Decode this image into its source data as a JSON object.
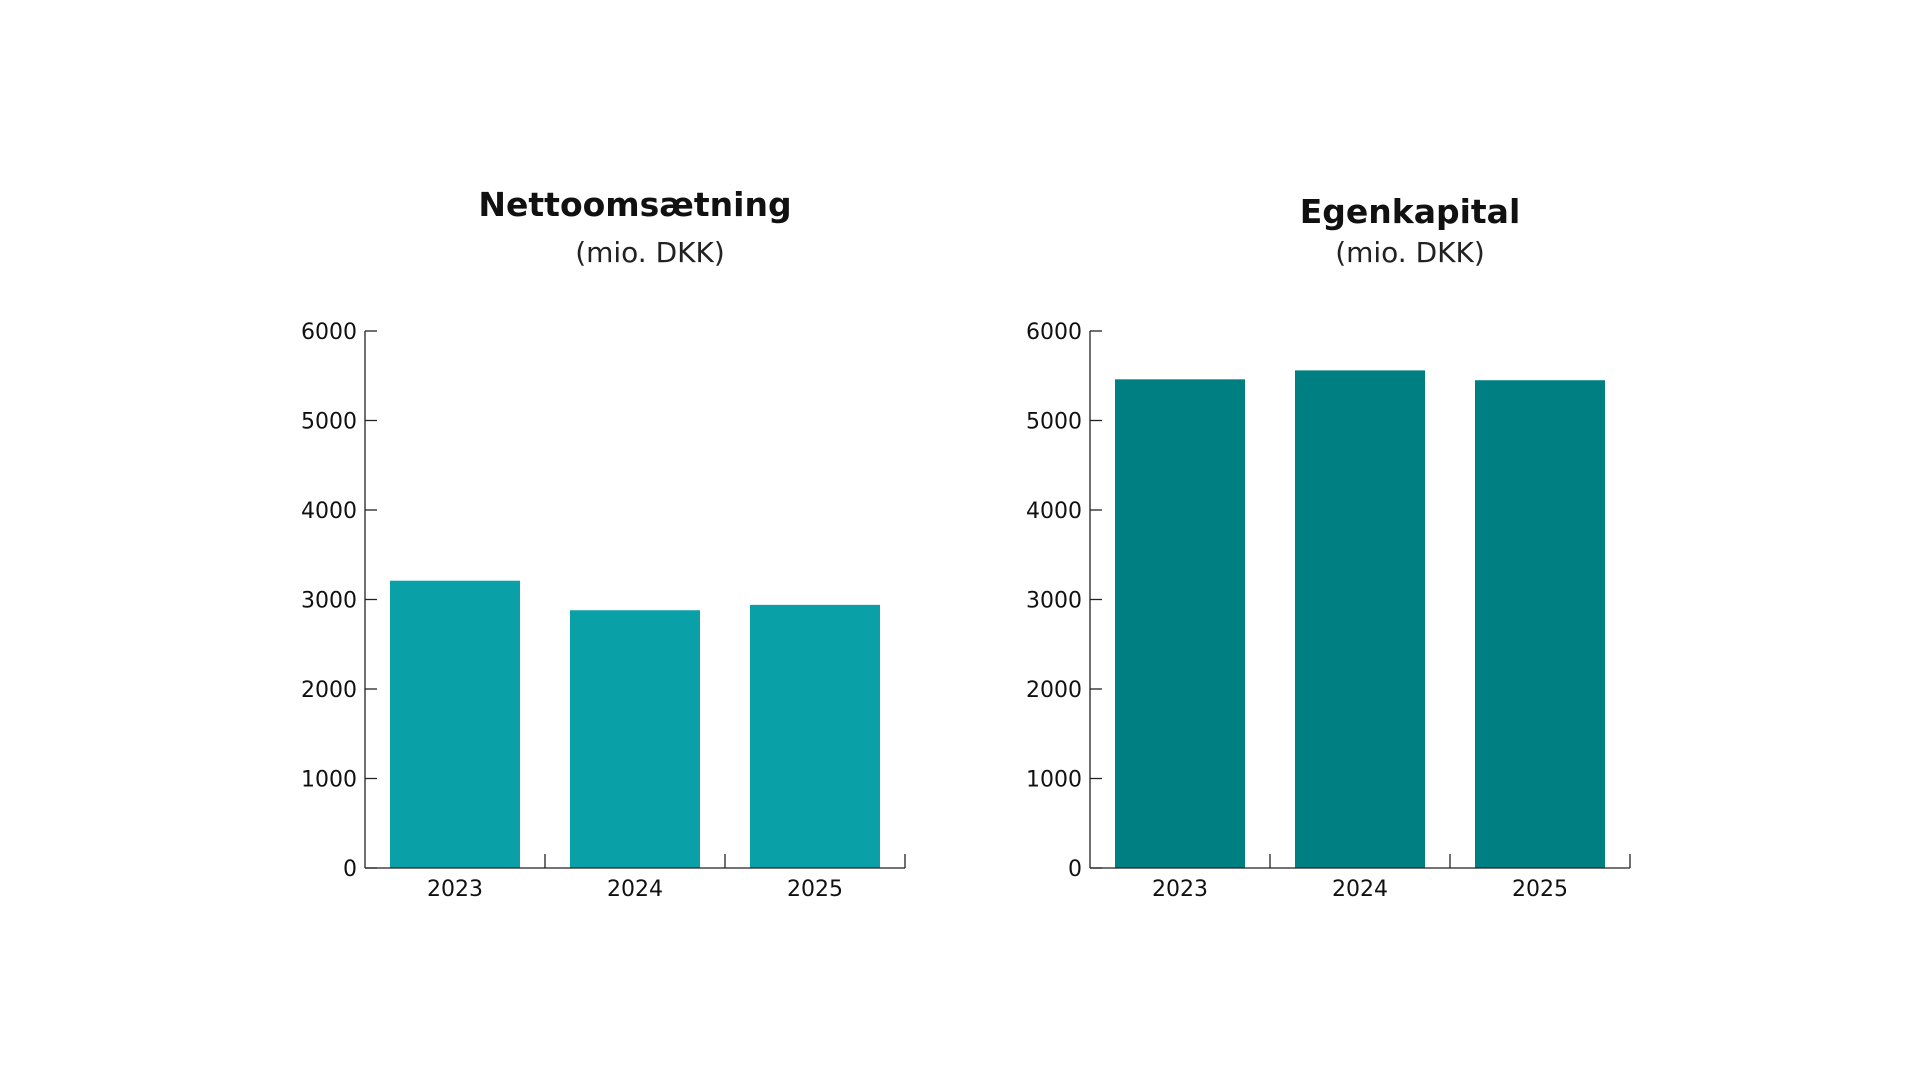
{
  "chart_data": [
    {
      "type": "bar",
      "title": "Nettoomsætning",
      "subtitle": "(mio. DKK)",
      "categories": [
        "2023",
        "2024",
        "2025"
      ],
      "values": [
        3210,
        2880,
        2940
      ],
      "ylim": [
        0,
        6000
      ],
      "yticks": [
        "0",
        "1000",
        "2000",
        "3000",
        "4000",
        "5000",
        "6000"
      ],
      "color": "#0aa0a8",
      "grid": false
    },
    {
      "type": "bar",
      "title": "Egenkapital",
      "subtitle": "(mio. DKK)",
      "categories": [
        "2023",
        "2024",
        "2025"
      ],
      "values": [
        5460,
        5560,
        5450
      ],
      "ylim": [
        0,
        6000
      ],
      "yticks": [
        "0",
        "1000",
        "2000",
        "3000",
        "4000",
        "5000",
        "6000"
      ],
      "color": "#007f82",
      "grid": false
    }
  ]
}
